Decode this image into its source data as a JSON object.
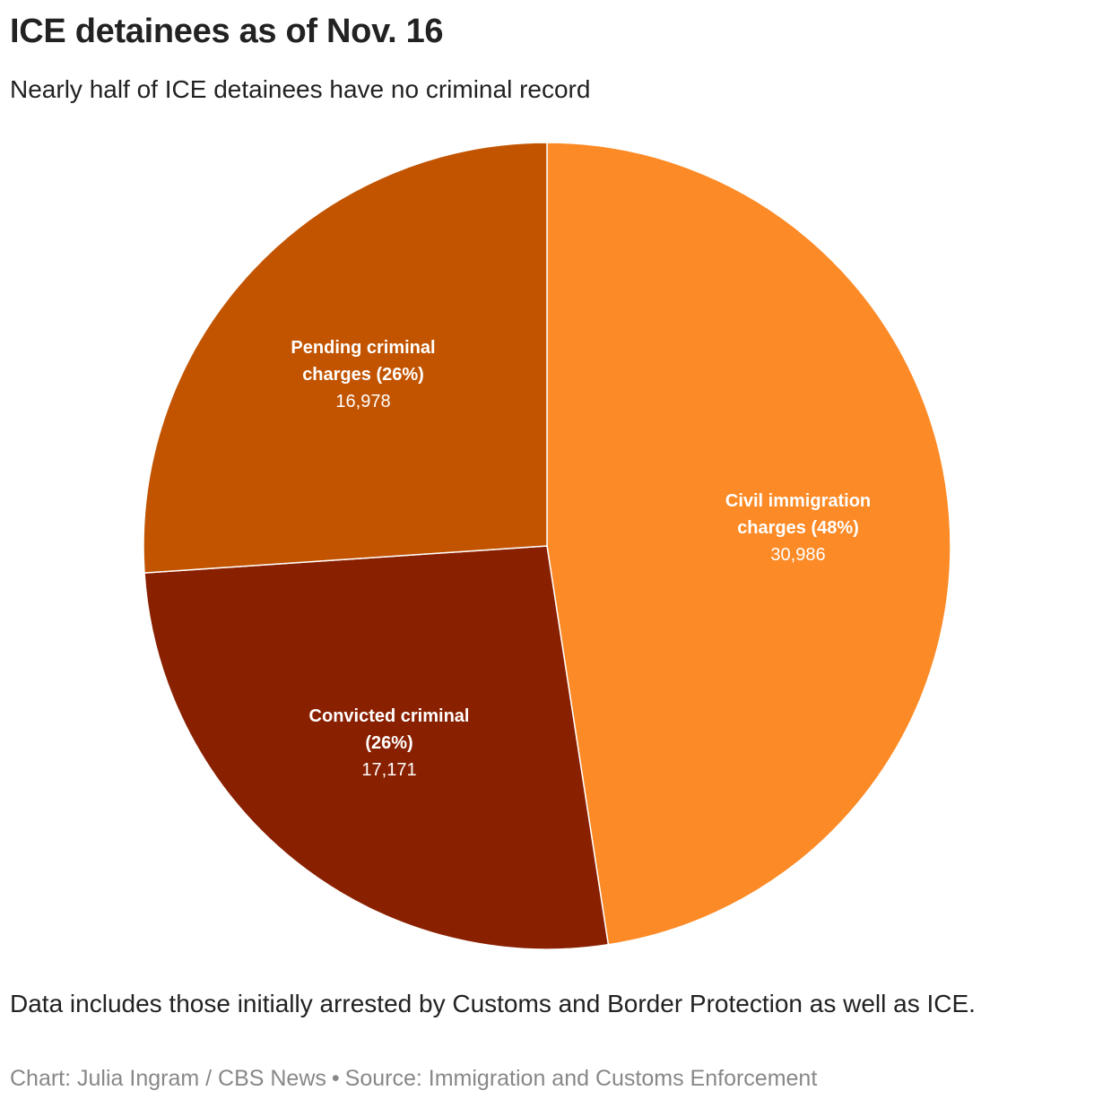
{
  "header": {
    "title": "ICE detainees as of Nov. 16",
    "subtitle": "Nearly half of ICE detainees have no criminal record"
  },
  "footer": {
    "note": "Data includes those initially arrested by Customs and Border Protection as well as ICE.",
    "credit_chart": "Chart: Julia Ingram / CBS News",
    "separator": "•",
    "credit_source": "Source: Immigration and Customs Enforcement"
  },
  "slices": [
    {
      "label_line1": "Civil immigration",
      "label_line2": "charges (48%)",
      "value_text": "30,986",
      "color": "#fc8a26"
    },
    {
      "label_line1": "Convicted criminal",
      "label_line2": "(26%)",
      "value_text": "17,171",
      "color": "#892000"
    },
    {
      "label_line1": "Pending criminal",
      "label_line2": "charges (26%)",
      "value_text": "16,978",
      "color": "#c25400"
    }
  ],
  "chart_data": {
    "type": "pie",
    "title": "ICE detainees as of Nov. 16",
    "subtitle": "Nearly half of ICE detainees have no criminal record",
    "categories": [
      "Civil immigration charges",
      "Convicted criminal",
      "Pending criminal charges"
    ],
    "values": [
      30986,
      17171,
      16978
    ],
    "percentages": [
      48,
      26,
      26
    ],
    "colors": [
      "#fc8a26",
      "#892000",
      "#c25400"
    ],
    "start_angle": "12 o'clock, clockwise",
    "legend": "none (direct labels)",
    "note": "Data includes those initially arrested by Customs and Border Protection as well as ICE.",
    "source": "Source: Immigration and Customs Enforcement",
    "credit": "Chart: Julia Ingram / CBS News"
  }
}
